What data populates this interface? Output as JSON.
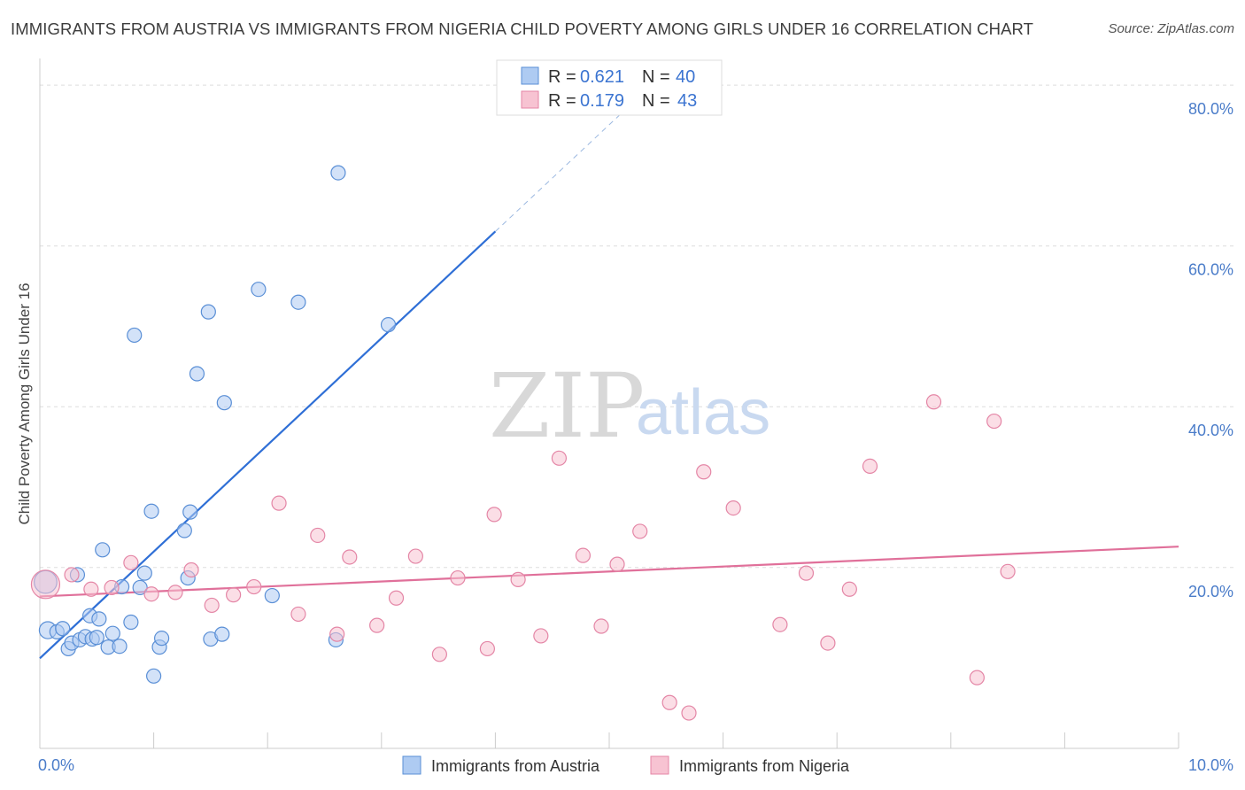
{
  "title": "IMMIGRANTS FROM AUSTRIA VS IMMIGRANTS FROM NIGERIA CHILD POVERTY AMONG GIRLS UNDER 16 CORRELATION CHART",
  "source": "Source: ZipAtlas.com",
  "watermark": {
    "zip": "ZIP",
    "atlas": "atlas"
  },
  "colors": {
    "austria_fill": "#aecbf2",
    "austria_stroke": "#5a8fd6",
    "austria_line": "#2f6fd6",
    "nigeria_fill": "#f7c3d2",
    "nigeria_stroke": "#e486a6",
    "nigeria_line": "#e0709a",
    "axis_label": "#4a7cc9",
    "grid": "#dddddd"
  },
  "legend_top": {
    "rows": [
      {
        "r_label": "R = ",
        "r_value": "0.621",
        "n_label": "N = ",
        "n_value": "40",
        "series": "austria"
      },
      {
        "r_label": "R = ",
        "r_value": "0.179",
        "n_label": "N = ",
        "n_value": "43",
        "series": "nigeria"
      }
    ]
  },
  "legend_bottom": [
    {
      "label": "Immigrants from Austria",
      "series": "austria"
    },
    {
      "label": "Immigrants from Nigeria",
      "series": "nigeria"
    }
  ],
  "chart_data": {
    "type": "scatter",
    "title": "IMMIGRANTS FROM AUSTRIA VS IMMIGRANTS FROM NIGERIA CHILD POVERTY AMONG GIRLS UNDER 16 CORRELATION CHART",
    "xlabel": "",
    "ylabel": "Child Poverty Among Girls Under 16",
    "xlim": [
      0,
      10
    ],
    "ylim": [
      -2.5,
      82
    ],
    "x_tick_labels": [
      {
        "value": 0,
        "label": "0.0%"
      },
      {
        "value": 10,
        "label": "10.0%"
      }
    ],
    "x_minor_ticks": [
      0,
      1,
      2,
      3,
      4,
      5,
      6,
      7,
      8,
      9,
      10
    ],
    "y_ticks": [
      {
        "value": 20,
        "label": "20.0%"
      },
      {
        "value": 40,
        "label": "40.0%"
      },
      {
        "value": 60,
        "label": "60.0%"
      },
      {
        "value": 80,
        "label": "80.0%"
      }
    ],
    "grid": true,
    "legend_placement": "top-center",
    "series": [
      {
        "name": "Immigrants from Austria",
        "key": "austria",
        "R": 0.621,
        "N": 40,
        "trend": {
          "x0": 0,
          "y0": 8.7,
          "x1": 4.0,
          "y1": 61.8,
          "dash_to_x": 5.1,
          "dash_to_y": 76.4
        },
        "points": [
          {
            "x": 0.05,
            "y": 18.2,
            "s": 1.6
          },
          {
            "x": 0.07,
            "y": 12.2,
            "s": 1.2
          },
          {
            "x": 0.15,
            "y": 12.0,
            "s": 1.0
          },
          {
            "x": 0.2,
            "y": 12.4,
            "s": 1.0
          },
          {
            "x": 0.25,
            "y": 9.9,
            "s": 1.0
          },
          {
            "x": 0.28,
            "y": 10.6,
            "s": 1.0
          },
          {
            "x": 0.33,
            "y": 19.1,
            "s": 1.0
          },
          {
            "x": 0.35,
            "y": 11.0,
            "s": 1.0
          },
          {
            "x": 0.4,
            "y": 11.4,
            "s": 1.0
          },
          {
            "x": 0.44,
            "y": 14.0,
            "s": 1.0
          },
          {
            "x": 0.46,
            "y": 11.1,
            "s": 1.0
          },
          {
            "x": 0.5,
            "y": 11.3,
            "s": 1.0
          },
          {
            "x": 0.52,
            "y": 13.6,
            "s": 1.0
          },
          {
            "x": 0.55,
            "y": 22.2,
            "s": 1.0
          },
          {
            "x": 0.6,
            "y": 10.1,
            "s": 1.0
          },
          {
            "x": 0.64,
            "y": 11.8,
            "s": 1.0
          },
          {
            "x": 0.7,
            "y": 10.2,
            "s": 1.0
          },
          {
            "x": 0.72,
            "y": 17.6,
            "s": 1.0
          },
          {
            "x": 0.8,
            "y": 13.2,
            "s": 1.0
          },
          {
            "x": 0.83,
            "y": 48.9,
            "s": 1.0
          },
          {
            "x": 0.88,
            "y": 17.5,
            "s": 1.0
          },
          {
            "x": 0.92,
            "y": 19.3,
            "s": 1.0
          },
          {
            "x": 0.98,
            "y": 27.0,
            "s": 1.0
          },
          {
            "x": 1.0,
            "y": 6.5,
            "s": 1.0
          },
          {
            "x": 1.05,
            "y": 10.1,
            "s": 1.0
          },
          {
            "x": 1.07,
            "y": 11.2,
            "s": 1.0
          },
          {
            "x": 1.27,
            "y": 24.6,
            "s": 1.0
          },
          {
            "x": 1.3,
            "y": 18.7,
            "s": 1.0
          },
          {
            "x": 1.32,
            "y": 26.9,
            "s": 1.0
          },
          {
            "x": 1.38,
            "y": 44.1,
            "s": 1.0
          },
          {
            "x": 1.48,
            "y": 51.8,
            "s": 1.0
          },
          {
            "x": 1.5,
            "y": 11.1,
            "s": 1.0
          },
          {
            "x": 1.6,
            "y": 11.7,
            "s": 1.0
          },
          {
            "x": 1.62,
            "y": 40.5,
            "s": 1.0
          },
          {
            "x": 1.92,
            "y": 54.6,
            "s": 1.0
          },
          {
            "x": 2.04,
            "y": 16.5,
            "s": 1.0
          },
          {
            "x": 2.27,
            "y": 53.0,
            "s": 1.0
          },
          {
            "x": 2.6,
            "y": 11.0,
            "s": 1.0
          },
          {
            "x": 2.62,
            "y": 69.1,
            "s": 1.0
          },
          {
            "x": 3.06,
            "y": 50.2,
            "s": 1.0
          }
        ]
      },
      {
        "name": "Immigrants from Nigeria",
        "key": "nigeria",
        "R": 0.179,
        "N": 43,
        "trend": {
          "x0": 0,
          "y0": 16.4,
          "x1": 10,
          "y1": 22.6
        },
        "points": [
          {
            "x": 0.05,
            "y": 17.9,
            "s": 2.0
          },
          {
            "x": 0.28,
            "y": 19.1,
            "s": 1.0
          },
          {
            "x": 0.45,
            "y": 17.3,
            "s": 1.0
          },
          {
            "x": 0.63,
            "y": 17.5,
            "s": 1.0
          },
          {
            "x": 0.8,
            "y": 20.6,
            "s": 1.0
          },
          {
            "x": 0.98,
            "y": 16.7,
            "s": 1.0
          },
          {
            "x": 1.19,
            "y": 16.9,
            "s": 1.0
          },
          {
            "x": 1.33,
            "y": 19.7,
            "s": 1.0
          },
          {
            "x": 1.51,
            "y": 15.3,
            "s": 1.0
          },
          {
            "x": 1.7,
            "y": 16.6,
            "s": 1.0
          },
          {
            "x": 1.88,
            "y": 17.6,
            "s": 1.0
          },
          {
            "x": 2.1,
            "y": 28.0,
            "s": 1.0
          },
          {
            "x": 2.27,
            "y": 14.2,
            "s": 1.0
          },
          {
            "x": 2.44,
            "y": 24.0,
            "s": 1.0
          },
          {
            "x": 2.61,
            "y": 11.7,
            "s": 1.0
          },
          {
            "x": 2.72,
            "y": 21.3,
            "s": 1.0
          },
          {
            "x": 2.96,
            "y": 12.8,
            "s": 1.0
          },
          {
            "x": 3.13,
            "y": 16.2,
            "s": 1.0
          },
          {
            "x": 3.3,
            "y": 21.4,
            "s": 1.0
          },
          {
            "x": 3.51,
            "y": 9.2,
            "s": 1.0
          },
          {
            "x": 3.67,
            "y": 18.7,
            "s": 1.0
          },
          {
            "x": 3.93,
            "y": 9.9,
            "s": 1.0
          },
          {
            "x": 3.99,
            "y": 26.6,
            "s": 1.0
          },
          {
            "x": 4.2,
            "y": 18.5,
            "s": 1.0
          },
          {
            "x": 4.4,
            "y": 11.5,
            "s": 1.0
          },
          {
            "x": 4.56,
            "y": 33.6,
            "s": 1.0
          },
          {
            "x": 4.77,
            "y": 21.5,
            "s": 1.0
          },
          {
            "x": 4.93,
            "y": 12.7,
            "s": 1.0
          },
          {
            "x": 5.07,
            "y": 20.4,
            "s": 1.0
          },
          {
            "x": 5.27,
            "y": 24.5,
            "s": 1.0
          },
          {
            "x": 5.53,
            "y": 3.2,
            "s": 1.0
          },
          {
            "x": 5.7,
            "y": 1.9,
            "s": 1.0
          },
          {
            "x": 5.83,
            "y": 31.9,
            "s": 1.0
          },
          {
            "x": 6.09,
            "y": 27.4,
            "s": 1.0
          },
          {
            "x": 6.5,
            "y": 12.9,
            "s": 1.0
          },
          {
            "x": 6.73,
            "y": 19.3,
            "s": 1.0
          },
          {
            "x": 6.92,
            "y": 10.6,
            "s": 1.0
          },
          {
            "x": 7.11,
            "y": 17.3,
            "s": 1.0
          },
          {
            "x": 7.29,
            "y": 32.6,
            "s": 1.0
          },
          {
            "x": 7.85,
            "y": 40.6,
            "s": 1.0
          },
          {
            "x": 8.23,
            "y": 6.3,
            "s": 1.0
          },
          {
            "x": 8.38,
            "y": 38.2,
            "s": 1.0
          },
          {
            "x": 8.5,
            "y": 19.5,
            "s": 1.0
          }
        ]
      }
    ]
  }
}
